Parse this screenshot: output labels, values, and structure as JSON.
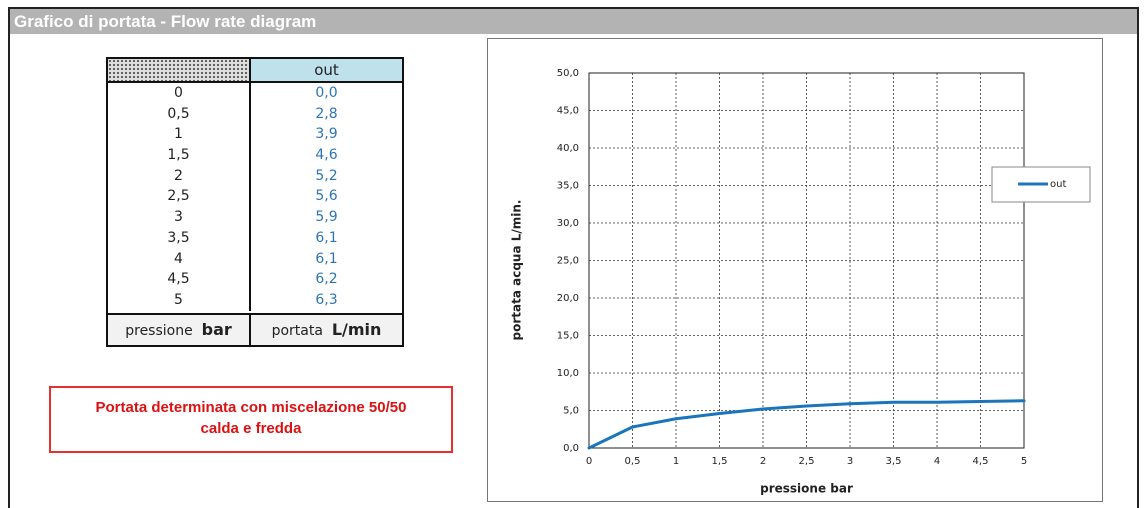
{
  "header": {
    "title": "Grafico di portata - Flow rate diagram"
  },
  "table": {
    "value_header": "out",
    "rows": [
      [
        "0",
        "0,0"
      ],
      [
        "0,5",
        "2,8"
      ],
      [
        "1",
        "3,9"
      ],
      [
        "1,5",
        "4,6"
      ],
      [
        "2",
        "5,2"
      ],
      [
        "2,5",
        "5,6"
      ],
      [
        "3",
        "5,9"
      ],
      [
        "3,5",
        "6,1"
      ],
      [
        "4",
        "6,1"
      ],
      [
        "4,5",
        "6,2"
      ],
      [
        "5",
        "6,3"
      ]
    ],
    "footer": [
      {
        "text": "pressione",
        "unit": "bar"
      },
      {
        "text": "portata",
        "unit": "L/min"
      }
    ]
  },
  "note": {
    "lines": [
      "Portata determinata con miscelazione 50/50",
      "calda e fredda"
    ]
  },
  "chart_data": {
    "type": "line",
    "x_label": "pressione bar",
    "y_label": "portata acqua L/min.",
    "x": [
      0,
      0.5,
      1,
      1.5,
      2,
      2.5,
      3,
      3.5,
      4,
      4.5,
      5
    ],
    "series": [
      {
        "name": "out",
        "color": "#1b75bc",
        "values": [
          0,
          2.8,
          3.9,
          4.6,
          5.2,
          5.6,
          5.9,
          6.1,
          6.1,
          6.2,
          6.3
        ]
      }
    ],
    "xlim": [
      0,
      5
    ],
    "ylim": [
      0,
      50
    ],
    "xticks": [
      0,
      {
        "value": 0.5,
        "label": "0,5"
      },
      1,
      {
        "value": 1.5,
        "label": "1,5"
      },
      2,
      {
        "value": 2.5,
        "label": "2,5"
      },
      3,
      {
        "value": 3.5,
        "label": "3,5"
      },
      4,
      {
        "value": 4.5,
        "label": "4,5"
      },
      5
    ],
    "yticks": [
      {
        "value": 0,
        "label": "0,0"
      },
      {
        "value": 5,
        "label": "5,0"
      },
      {
        "value": 10,
        "label": "10,0"
      },
      {
        "value": 15,
        "label": "15,0"
      },
      {
        "value": 20,
        "label": "20,0"
      },
      {
        "value": 25,
        "label": "25,0"
      },
      {
        "value": 30,
        "label": "30,0"
      },
      {
        "value": 35,
        "label": "35,0"
      },
      {
        "value": 40,
        "label": "40,0"
      },
      {
        "value": 45,
        "label": "45,0"
      },
      {
        "value": 50,
        "label": "50,0"
      }
    ],
    "grid": true,
    "legend": "right"
  }
}
